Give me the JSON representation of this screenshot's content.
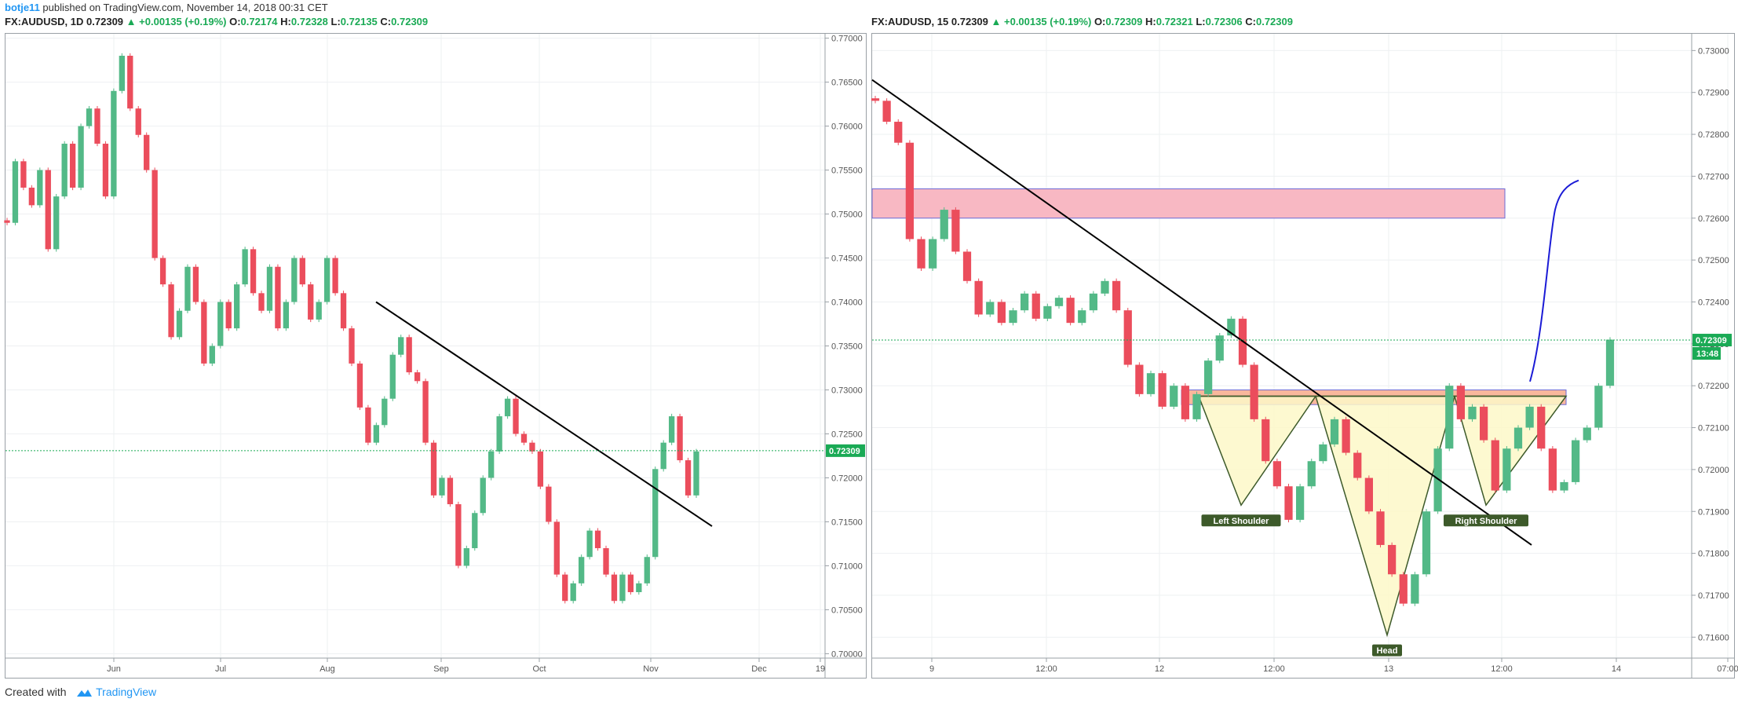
{
  "header": {
    "author": "botje11",
    "published_text": "published on TradingView.com, November 14, 2018 00:31 CET"
  },
  "left_chart": {
    "symbol": "FX:AUDUSD,",
    "interval": "1D",
    "last": "0.72309",
    "change": "▲ +0.00135 (+0.19%)",
    "o_label": "O:",
    "o": "0.72174",
    "h_label": "H:",
    "h": "0.72328",
    "l_label": "L:",
    "l": "0.72135",
    "c_label": "C:",
    "c": "0.72309",
    "price_tag": "0.72309"
  },
  "right_chart": {
    "symbol": "FX:AUDUSD,",
    "interval": "15",
    "last": "0.72309",
    "change": "▲ +0.00135 (+0.19%)",
    "o_label": "O:",
    "o": "0.72309",
    "h_label": "H:",
    "h": "0.72321",
    "l_label": "L:",
    "l": "0.72306",
    "c_label": "C:",
    "c": "0.72309",
    "price_tag": "0.72309",
    "countdown": "13:48",
    "labels": [
      "Left Shoulder",
      "Head",
      "Right Shoulder"
    ]
  },
  "footer": {
    "created_with": "Created with",
    "brand": "TradingView"
  },
  "colors": {
    "up": "#53b987",
    "down": "#eb4d5c",
    "zone_pink": "#f8b8c3",
    "zone_orange": "#f9b79c",
    "pattern_fill": "#fdf8c8",
    "label_bg": "#3d5a2a",
    "trend": "#000000",
    "projection": "#1b1bd6"
  },
  "chart_data": [
    {
      "type": "candlestick",
      "title": "FX:AUDUSD, 1D",
      "y_ticks": [
        "0.77000",
        "0.76500",
        "0.76000",
        "0.75500",
        "0.75000",
        "0.74500",
        "0.74000",
        "0.73500",
        "0.73000",
        "0.72500",
        "0.72000",
        "0.71500",
        "0.71000",
        "0.70500",
        "0.70000"
      ],
      "ylim": [
        0.6995,
        0.7705
      ],
      "x_ticks": [
        "Jun",
        "Jul",
        "Aug",
        "Sep",
        "Oct",
        "Nov",
        "Dec",
        "19"
      ],
      "current_price": 0.72309,
      "close_path": [
        0.749,
        0.756,
        0.753,
        0.751,
        0.755,
        0.746,
        0.752,
        0.758,
        0.753,
        0.76,
        0.762,
        0.758,
        0.752,
        0.764,
        0.768,
        0.762,
        0.759,
        0.755,
        0.745,
        0.742,
        0.736,
        0.739,
        0.744,
        0.74,
        0.733,
        0.735,
        0.74,
        0.737,
        0.742,
        0.746,
        0.741,
        0.739,
        0.744,
        0.737,
        0.74,
        0.745,
        0.742,
        0.738,
        0.74,
        0.745,
        0.741,
        0.737,
        0.733,
        0.728,
        0.724,
        0.726,
        0.729,
        0.734,
        0.736,
        0.732,
        0.731,
        0.724,
        0.718,
        0.72,
        0.717,
        0.71,
        0.712,
        0.716,
        0.72,
        0.723,
        0.727,
        0.729,
        0.725,
        0.724,
        0.723,
        0.719,
        0.715,
        0.709,
        0.706,
        0.708,
        0.711,
        0.714,
        0.712,
        0.709,
        0.706,
        0.709,
        0.707,
        0.708,
        0.711,
        0.721,
        0.724,
        0.727,
        0.722,
        0.718,
        0.723
      ],
      "trendline": {
        "from": [
          "mid-Aug",
          0.74
        ],
        "to": [
          "mid-Nov",
          0.7145
        ]
      }
    },
    {
      "type": "candlestick",
      "title": "FX:AUDUSD, 15",
      "y_ticks": [
        "0.73000",
        "0.72900",
        "0.72800",
        "0.72700",
        "0.72600",
        "0.72500",
        "0.72400",
        "0.72300",
        "0.72200",
        "0.72100",
        "0.72000",
        "0.71900",
        "0.71800",
        "0.71700",
        "0.71600"
      ],
      "ylim": [
        0.7155,
        0.7304
      ],
      "x_ticks": [
        "9",
        "12:00",
        "12",
        "12:00",
        "13",
        "12:00",
        "14",
        "07:00"
      ],
      "current_price": 0.72309,
      "close_path": [
        0.7288,
        0.7283,
        0.7278,
        0.7255,
        0.7248,
        0.7255,
        0.7262,
        0.7252,
        0.7245,
        0.7237,
        0.724,
        0.7235,
        0.7238,
        0.7242,
        0.7236,
        0.7239,
        0.7241,
        0.7235,
        0.7238,
        0.7242,
        0.7245,
        0.7238,
        0.7225,
        0.7218,
        0.7223,
        0.7215,
        0.722,
        0.7212,
        0.7218,
        0.7226,
        0.7232,
        0.7236,
        0.7225,
        0.7212,
        0.7202,
        0.7196,
        0.7188,
        0.7196,
        0.7202,
        0.7206,
        0.7212,
        0.7204,
        0.7198,
        0.719,
        0.7182,
        0.7175,
        0.7168,
        0.7175,
        0.719,
        0.7205,
        0.722,
        0.7212,
        0.7215,
        0.7207,
        0.7195,
        0.7205,
        0.721,
        0.7215,
        0.7205,
        0.7195,
        0.7197,
        0.7207,
        0.721,
        0.722,
        0.7231
      ],
      "resistance_zone": [
        0.726,
        0.7267
      ],
      "neckline_zone": [
        0.72155,
        0.7219
      ],
      "trendline": {
        "from": [
          "8th",
          0.7293
        ],
        "to": [
          "13th late",
          0.7182
        ]
      },
      "pattern": "inverse head and shoulders",
      "pattern_points": {
        "left_shoulder": 0.71915,
        "head": 0.71605,
        "right_shoulder": 0.71915
      },
      "projection": "curve up to ~0.7268"
    }
  ]
}
